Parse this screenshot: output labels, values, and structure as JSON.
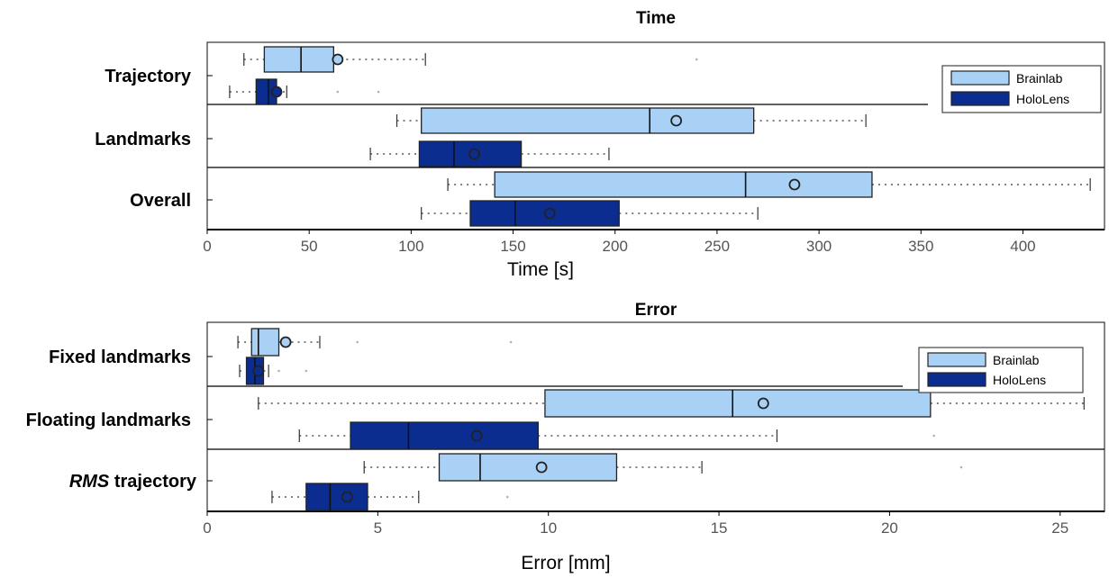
{
  "colors": {
    "brainlab": "#a9d1f5",
    "hololens": "#0a2d8f",
    "frame": "#333333",
    "whisker": "#555555",
    "outlier": "#b0b0b0"
  },
  "chart_data": [
    {
      "type": "box",
      "title": "Time",
      "xlabel": "Time [s]",
      "xlim": [
        0,
        440
      ],
      "xticks": [
        0,
        50,
        100,
        150,
        200,
        250,
        300,
        350,
        400
      ],
      "legend": {
        "position": "top-right",
        "entries": [
          "Brainlab",
          "HoloLens"
        ]
      },
      "categories": [
        "Trajectory",
        "Landmarks",
        "Overall"
      ],
      "series": [
        {
          "name": "Brainlab",
          "boxes": [
            {
              "min": 18,
              "q1": 28,
              "median": 46,
              "q3": 62,
              "max": 107,
              "mean": 64,
              "outliers": [
                240
              ]
            },
            {
              "min": 93,
              "q1": 105,
              "median": 217,
              "q3": 268,
              "max": 323,
              "mean": 230,
              "outliers": []
            },
            {
              "min": 118,
              "q1": 141,
              "median": 264,
              "q3": 326,
              "max": 433,
              "mean": 288,
              "outliers": []
            }
          ]
        },
        {
          "name": "HoloLens",
          "boxes": [
            {
              "min": 11,
              "q1": 24,
              "median": 30,
              "q3": 34,
              "max": 39,
              "mean": 34,
              "outliers": [
                64,
                84
              ]
            },
            {
              "min": 80,
              "q1": 104,
              "median": 121,
              "q3": 154,
              "max": 197,
              "mean": 131,
              "outliers": []
            },
            {
              "min": 105,
              "q1": 129,
              "median": 151,
              "q3": 202,
              "max": 270,
              "mean": 168,
              "outliers": []
            }
          ]
        }
      ]
    },
    {
      "type": "box",
      "title": "Error",
      "xlabel": "Error [mm]",
      "xlim": [
        0,
        26.3
      ],
      "xticks": [
        0,
        5,
        10,
        15,
        20,
        25
      ],
      "legend": {
        "position": "top-right",
        "entries": [
          "Brainlab",
          "HoloLens"
        ]
      },
      "categories": [
        "Fixed landmarks",
        "Floating landmarks",
        "RMS trajectory"
      ],
      "series": [
        {
          "name": "Brainlab",
          "boxes": [
            {
              "min": 0.9,
              "q1": 1.3,
              "median": 1.5,
              "q3": 2.1,
              "max": 3.3,
              "mean": 2.3,
              "outliers": [
                4.4,
                8.9
              ]
            },
            {
              "min": 1.5,
              "q1": 9.9,
              "median": 15.4,
              "q3": 21.2,
              "max": 25.7,
              "mean": 16.3,
              "outliers": []
            },
            {
              "min": 4.6,
              "q1": 6.8,
              "median": 8.0,
              "q3": 12.0,
              "max": 14.5,
              "mean": 9.8,
              "outliers": [
                22.1
              ]
            }
          ]
        },
        {
          "name": "HoloLens",
          "boxes": [
            {
              "min": 0.95,
              "q1": 1.15,
              "median": 1.4,
              "q3": 1.65,
              "max": 1.8,
              "mean": 1.5,
              "outliers": [
                2.1,
                2.9
              ]
            },
            {
              "min": 2.7,
              "q1": 4.2,
              "median": 5.9,
              "q3": 9.7,
              "max": 16.7,
              "mean": 7.9,
              "outliers": [
                21.3
              ]
            },
            {
              "min": 1.9,
              "q1": 2.9,
              "median": 3.6,
              "q3": 4.7,
              "max": 6.2,
              "mean": 4.1,
              "outliers": [
                8.8
              ]
            }
          ]
        }
      ]
    }
  ]
}
